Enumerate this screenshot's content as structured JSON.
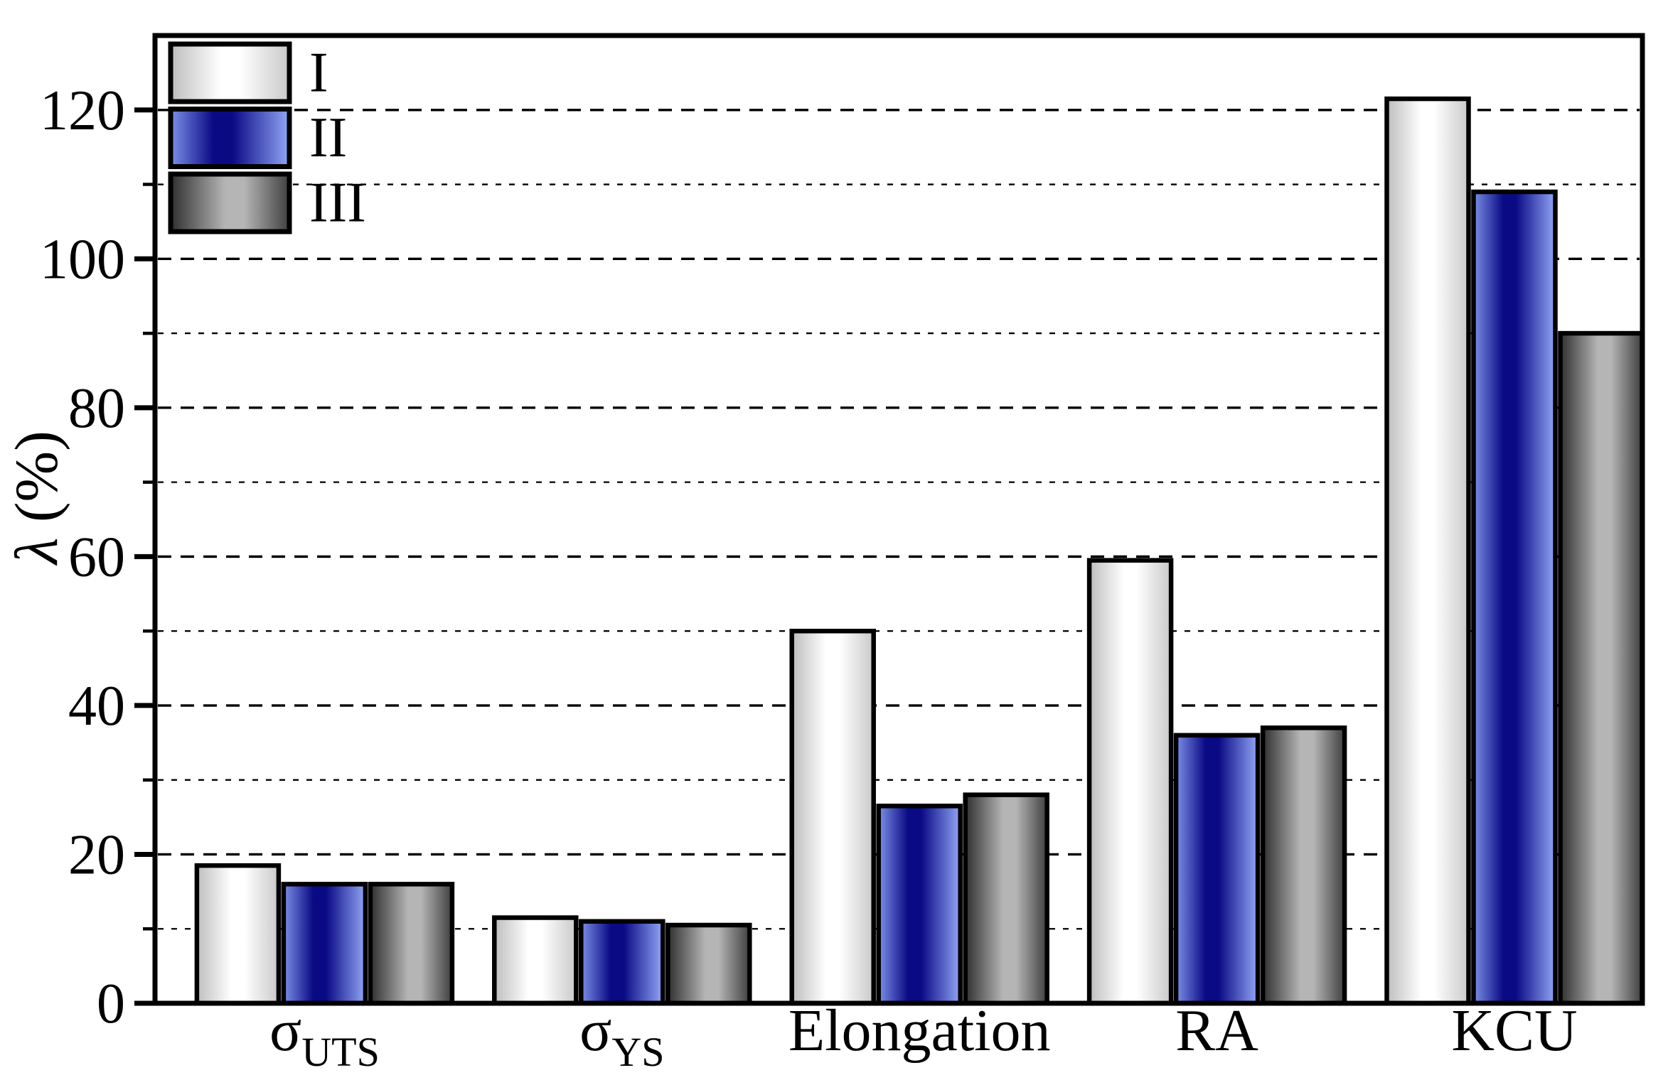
{
  "chart_data": {
    "type": "bar",
    "title": "",
    "xlabel": "",
    "ylabel": "λ (%)",
    "ylim": [
      0,
      130
    ],
    "yticks_major": [
      0,
      20,
      40,
      60,
      80,
      100,
      120
    ],
    "yticks_minor": [
      10,
      30,
      50,
      70,
      90,
      110
    ],
    "grid": "horizontal dashed line every 10 units; long dashes on major levels, short dashes on minor levels",
    "legend_position": "top-left inside plot area",
    "categories": [
      "σ_UTS",
      "σ_YS",
      "Elongation",
      "RA",
      "KCU"
    ],
    "categories_parts": [
      {
        "base": "σ",
        "sub": "UTS"
      },
      {
        "base": "σ",
        "sub": "YS"
      },
      {
        "base": "Elongation",
        "sub": ""
      },
      {
        "base": "RA",
        "sub": ""
      },
      {
        "base": "KCU",
        "sub": ""
      }
    ],
    "series": [
      {
        "name": "I",
        "values": [
          18.5,
          11.5,
          50.0,
          59.5,
          121.5
        ],
        "gradient_edge1": "#bdbdbd",
        "gradient_mid": "#ffffff",
        "gradient_edge2": "#c9c9c9",
        "gradient_mid_pos": 0.52
      },
      {
        "name": "II",
        "values": [
          16.0,
          11.0,
          26.5,
          36.0,
          109.0
        ],
        "gradient_edge1": "#7d91e8",
        "gradient_mid": "#0a0a85",
        "gradient_edge2": "#92a6f6",
        "gradient_mid_pos": 0.46
      },
      {
        "name": "III",
        "values": [
          16.0,
          10.5,
          28.0,
          37.0,
          90.0
        ],
        "gradient_edge1": "#2f2f2f",
        "gradient_mid": "#b5b5b5",
        "gradient_edge2": "#3f3f3f",
        "gradient_mid_pos": 0.56
      }
    ],
    "bar_outline_color": "#000000",
    "axis_color": "#000000",
    "background_color": "#ffffff"
  }
}
